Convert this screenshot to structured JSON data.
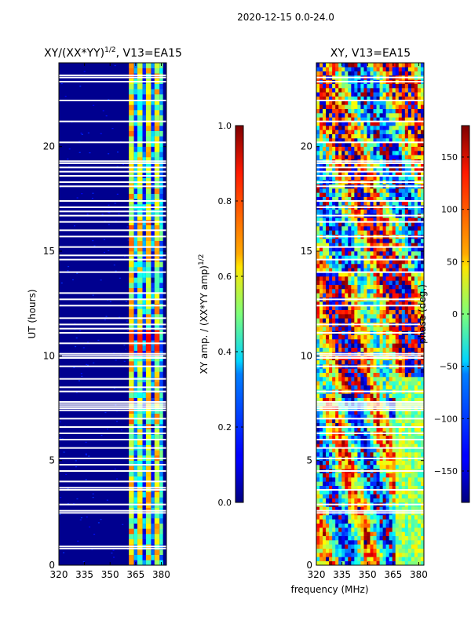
{
  "suptitle": "2020-12-15 0.0-24.0",
  "colors": {
    "background": "#ffffff",
    "cold": "#00008f",
    "flag": "#ffffff"
  },
  "chart_data": [
    {
      "type": "heatmap",
      "title_main": "XY/(XX*YY)",
      "title_sup": "1/2",
      "title_tail": ", V13=EA15",
      "xlabel": "",
      "ylabel": "UT (hours)",
      "xlim": [
        320,
        383
      ],
      "ylim": [
        0,
        24
      ],
      "xticks": [
        320,
        335,
        350,
        365,
        380
      ],
      "yticks": [
        0,
        5,
        10,
        15,
        20
      ],
      "colorbar": {
        "label_main": "XY amp. / (XX*YY amp)",
        "label_sup": "1/2",
        "range": [
          0.0,
          1.0
        ],
        "ticks": [
          0.0,
          0.2,
          0.4,
          0.6,
          0.8,
          1.0
        ],
        "tick_labels": [
          "0.0",
          "0.2",
          "0.4",
          "0.6",
          "0.8",
          "1.0"
        ]
      },
      "active_band_mhz": [
        361,
        382
      ],
      "flagged_hours": [
        0.8,
        0.9,
        2.5,
        2.6,
        2.9,
        3.6,
        3.7,
        4.0,
        4.5,
        4.8,
        5.1,
        5.6,
        6.0,
        6.3,
        6.6,
        7.0,
        7.4,
        7.5,
        7.6,
        7.7,
        7.8,
        8.3,
        8.5,
        8.9,
        9.5,
        9.9,
        10.0,
        10.1,
        10.6,
        11.1,
        11.3,
        11.5,
        11.8,
        12.4,
        12.7,
        13.0,
        14.0,
        14.6,
        14.8,
        15.2,
        15.7,
        16.0,
        16.4,
        16.7,
        16.9,
        17.1,
        17.4,
        18.1,
        18.3,
        18.6,
        18.8,
        19.0,
        19.2,
        19.3,
        20.2,
        21.2,
        22.2,
        23.1,
        23.3,
        23.4
      ]
    },
    {
      "type": "heatmap",
      "title_main": "XY, V13=EA15",
      "title_sup": "",
      "title_tail": "",
      "xlabel": "frequency (MHz)",
      "ylabel": "",
      "xlim": [
        320,
        383
      ],
      "ylim": [
        0,
        24
      ],
      "xticks": [
        320,
        335,
        350,
        365,
        380
      ],
      "yticks": [
        0,
        5,
        10,
        15,
        20
      ],
      "colorbar": {
        "label_main": "phase (deg.)",
        "label_sup": "",
        "range": [
          -180,
          180
        ],
        "ticks": [
          150,
          100,
          50,
          0,
          -50,
          -100,
          -150
        ],
        "tick_labels": [
          "150",
          "100",
          "50",
          "0",
          "−50",
          "−100",
          "−150"
        ]
      },
      "flagged_hours": [
        2.5,
        2.6,
        2.9,
        3.6,
        4.5,
        5.1,
        5.6,
        6.0,
        6.3,
        6.6,
        7.0,
        7.4,
        7.5,
        7.6,
        7.7,
        7.8,
        8.3,
        9.5,
        9.9,
        10.0,
        10.1,
        11.1,
        11.5,
        12.4,
        12.7,
        14.0,
        14.6,
        15.2,
        15.7,
        16.4,
        16.7,
        17.1,
        17.4,
        18.1,
        18.3,
        18.6,
        18.8,
        19.0,
        19.2,
        19.3,
        20.2,
        21.2,
        22.2,
        23.1,
        23.3
      ]
    }
  ]
}
